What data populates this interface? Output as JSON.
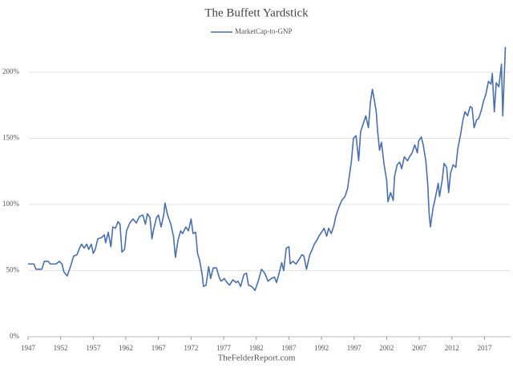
{
  "chart_data": {
    "type": "line",
    "title": "The Buffett Yardstick",
    "footer": "TheFelderReport.com",
    "legend": "top",
    "grid": true,
    "xlim": [
      1947,
      2021
    ],
    "xticks": [
      1947,
      1952,
      1957,
      1962,
      1967,
      1972,
      1977,
      1982,
      1987,
      1992,
      1997,
      2002,
      2007,
      2012,
      2017
    ],
    "ylim": [
      0,
      230
    ],
    "yticks": [
      {
        "value": 0,
        "label": "0%"
      },
      {
        "value": 50,
        "label": "50%"
      },
      {
        "value": 100,
        "label": "100%"
      },
      {
        "value": 150,
        "label": "150%"
      },
      {
        "value": 200,
        "label": "200%"
      }
    ],
    "x": [
      1947,
      1947.9,
      1948.2,
      1949.1,
      1949.5,
      1950.1,
      1950.4,
      1951.3,
      1951.8,
      1952.2,
      1952.5,
      1953,
      1953.5,
      1954,
      1954.5,
      1954.9,
      1955.2,
      1955.6,
      1956,
      1956.3,
      1956.7,
      1957,
      1957.3,
      1957.7,
      1958.3,
      1958.7,
      1958.9,
      1959.3,
      1959.7,
      1960,
      1960.4,
      1960.8,
      1961.1,
      1961.4,
      1961.8,
      1962.1,
      1962.6,
      1963.1,
      1963.6,
      1964.1,
      1964.6,
      1965,
      1965.3,
      1965.7,
      1966,
      1966.3,
      1966.7,
      1967,
      1967.4,
      1967.8,
      1968,
      1968.4,
      1968.9,
      1969.3,
      1969.6,
      1970,
      1970.4,
      1970.7,
      1971.2,
      1971.6,
      1972,
      1972.3,
      1972.7,
      1973,
      1973.3,
      1973.7,
      1973.9,
      1974.3,
      1974.7,
      1975,
      1975.4,
      1975.9,
      1976.3,
      1976.6,
      1977.1,
      1977.5,
      1977.9,
      1978.4,
      1978.9,
      1979.2,
      1979.6,
      1980.1,
      1980.5,
      1980.8,
      1981.3,
      1981.8,
      1982.3,
      1982.8,
      1983.3,
      1983.8,
      1984.3,
      1984.8,
      1985.1,
      1985.5,
      1985.9,
      1986.2,
      1986.6,
      1987,
      1987.2,
      1987.6,
      1988.1,
      1988.5,
      1989,
      1989.3,
      1989.7,
      1990.2,
      1990.5,
      1990.9,
      1991.3,
      1991.6,
      1992,
      1992.4,
      1992.8,
      1993.1,
      1993.5,
      1993.9,
      1994.2,
      1994.6,
      1995.1,
      1995.6,
      1996,
      1996.6,
      1996.9,
      1997.3,
      1997.7,
      1998,
      1998.4,
      1998.8,
      1999.2,
      1999.5,
      1999.8,
      2000.1,
      2000.4,
      2000.6,
      2000.9,
      2001.2,
      2001.6,
      2002,
      2002.2,
      2002.6,
      2003,
      2003.2,
      2003.6,
      2004,
      2004.3,
      2004.7,
      2005.2,
      2005.5,
      2005.9,
      2006.3,
      2006.7,
      2006.9,
      2007.3,
      2007.6,
      2008,
      2008.3,
      2008.5,
      2008.7,
      2009.1,
      2009.5,
      2009.9,
      2010.1,
      2010.5,
      2010.8,
      2011.2,
      2011.5,
      2011.8,
      2012.2,
      2012.6,
      2012.9,
      2013.3,
      2013.7,
      2014,
      2014.4,
      2014.8,
      2015.1,
      2015.4,
      2015.8,
      2016.1,
      2016.5,
      2016.9,
      2017.2,
      2017.6,
      2018,
      2018.2,
      2018.5,
      2018.8,
      2019.2,
      2019.6,
      2019.8,
      2020.2
    ],
    "series": [
      {
        "name": "MarketCap-to-GNP",
        "color": "#4a6fae",
        "values": [
          55,
          55,
          51,
          51,
          57,
          57,
          55,
          55,
          57,
          55,
          49,
          46,
          53,
          61,
          62,
          67,
          70,
          67,
          70,
          66,
          70,
          63,
          66,
          74,
          75,
          77,
          71,
          79,
          68,
          83,
          82,
          87,
          85,
          64,
          66,
          80,
          86,
          89,
          86,
          91,
          92,
          85,
          93,
          90,
          74,
          82,
          90,
          92,
          83,
          92,
          101,
          92,
          85,
          76,
          60,
          73,
          80,
          78,
          83,
          80,
          89,
          78,
          79,
          63,
          58,
          47,
          38,
          39,
          53,
          44,
          52,
          52,
          45,
          42,
          44,
          41,
          39,
          43,
          41,
          42,
          38,
          47,
          48,
          39,
          38,
          35,
          42,
          51,
          48,
          42,
          44,
          45,
          41,
          48,
          56,
          50,
          67,
          68,
          55,
          57,
          55,
          58,
          62,
          61,
          51,
          62,
          65,
          70,
          73,
          76,
          79,
          82,
          76,
          82,
          78,
          84,
          91,
          97,
          103,
          106,
          112,
          133,
          150,
          152,
          133,
          155,
          161,
          167,
          158,
          177,
          187,
          179,
          170,
          156,
          141,
          147,
          130,
          118,
          102,
          109,
          103,
          121,
          130,
          132,
          127,
          136,
          133,
          136,
          139,
          145,
          139,
          148,
          151,
          145,
          133,
          115,
          94,
          83,
          97,
          106,
          116,
          106,
          118,
          131,
          128,
          109,
          124,
          130,
          128,
          142,
          152,
          164,
          170,
          167,
          174,
          173,
          158,
          164,
          165,
          171,
          179,
          183,
          193,
          191,
          199,
          170,
          192,
          189,
          206,
          167,
          219
        ]
      }
    ]
  }
}
